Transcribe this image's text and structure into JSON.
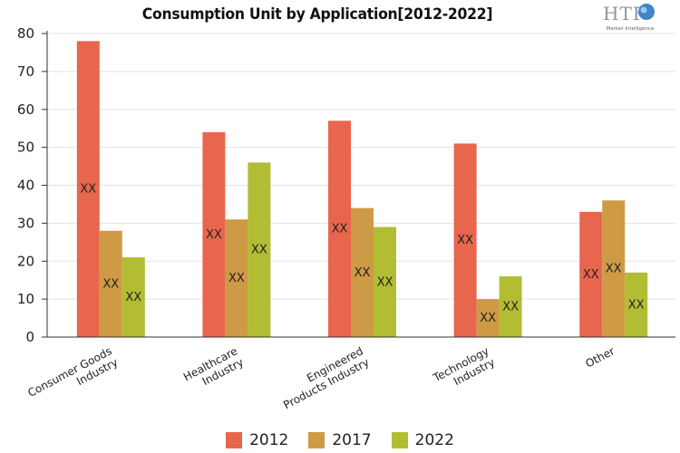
{
  "chart_data": {
    "type": "bar",
    "title": "Consumption Unit by  Application[2012-2022]",
    "categories": [
      [
        "Consumer Goods",
        "Industry"
      ],
      [
        "Healthcare",
        "Industry"
      ],
      [
        "Engineered",
        "Products Industry"
      ],
      [
        "Technology",
        "Industry"
      ],
      [
        "Other"
      ]
    ],
    "series": [
      {
        "name": "2012",
        "color": "#e8664d",
        "values": [
          78,
          54,
          57,
          51,
          33
        ]
      },
      {
        "name": "2017",
        "color": "#cf9a45",
        "values": [
          28,
          31,
          34,
          10,
          36
        ]
      },
      {
        "name": "2022",
        "color": "#b2bd34",
        "values": [
          21,
          46,
          29,
          16,
          17
        ]
      }
    ],
    "data_label": "XX",
    "yticks": [
      0,
      10,
      20,
      30,
      40,
      50,
      60,
      70,
      80
    ],
    "ylim": [
      0,
      80
    ],
    "grid": true,
    "legend_position": "bottom",
    "xlabel": "",
    "ylabel": ""
  },
  "logo": {
    "mark": "HTF",
    "tagline": "Market Intelligence"
  }
}
